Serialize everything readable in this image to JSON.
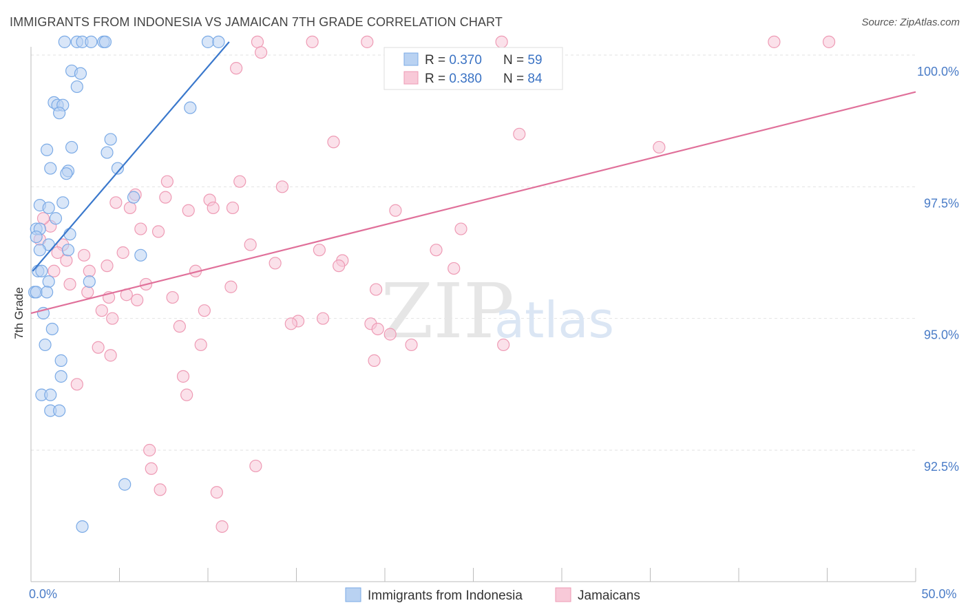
{
  "title": "IMMIGRANTS FROM INDONESIA VS JAMAICAN 7TH GRADE CORRELATION CHART",
  "source": "Source: ZipAtlas.com",
  "watermark": {
    "zip": "ZIP",
    "atlas": "atlas"
  },
  "chart_data": {
    "type": "scatter",
    "ylabel": "7th Grade",
    "xlim": [
      0,
      50
    ],
    "ylim": [
      90.0,
      100.5
    ],
    "x_tick_labels": [
      {
        "value": 0,
        "label": "0.0%"
      },
      {
        "value": 50,
        "label": "50.0%"
      }
    ],
    "y_ticks": [
      {
        "value": 92.5,
        "label": "92.5%"
      },
      {
        "value": 95.0,
        "label": "95.0%"
      },
      {
        "value": 97.5,
        "label": "97.5%"
      },
      {
        "value": 100.0,
        "label": "100.0%"
      }
    ],
    "legend": {
      "rows": [
        {
          "r_label": "R = ",
          "r_value": "0.370",
          "n_label": "N = ",
          "n_value": "59"
        },
        {
          "r_label": "R = ",
          "r_value": "0.380",
          "n_label": "N = ",
          "n_value": "84"
        }
      ]
    },
    "series": [
      {
        "name": "Immigrants from Indonesia",
        "color": "#7aaae6",
        "fill": "#b9d2f2",
        "trend": {
          "x0": 0.1,
          "y0": 95.9,
          "x1": 11.2,
          "y1": 100.25,
          "color": "#3a78cc"
        },
        "points": [
          [
            1.9,
            100.25
          ],
          [
            2.6,
            100.25
          ],
          [
            2.9,
            100.25
          ],
          [
            3.4,
            100.25
          ],
          [
            4.1,
            100.25
          ],
          [
            4.2,
            100.25
          ],
          [
            10.0,
            100.25
          ],
          [
            10.6,
            100.25
          ],
          [
            2.3,
            99.7
          ],
          [
            2.8,
            99.65
          ],
          [
            2.6,
            99.4
          ],
          [
            1.3,
            99.1
          ],
          [
            1.5,
            99.05
          ],
          [
            1.8,
            99.05
          ],
          [
            1.6,
            98.9
          ],
          [
            9.0,
            99.0
          ],
          [
            4.5,
            98.4
          ],
          [
            2.3,
            98.25
          ],
          [
            0.9,
            98.2
          ],
          [
            4.3,
            98.15
          ],
          [
            1.1,
            97.85
          ],
          [
            4.9,
            97.85
          ],
          [
            2.1,
            97.8
          ],
          [
            2.0,
            97.75
          ],
          [
            1.8,
            97.2
          ],
          [
            5.8,
            97.3
          ],
          [
            0.5,
            97.15
          ],
          [
            1.0,
            97.1
          ],
          [
            1.4,
            96.9
          ],
          [
            0.3,
            96.7
          ],
          [
            0.5,
            96.7
          ],
          [
            2.2,
            96.6
          ],
          [
            0.3,
            96.55
          ],
          [
            1.0,
            96.4
          ],
          [
            2.1,
            96.3
          ],
          [
            0.5,
            96.3
          ],
          [
            6.2,
            96.2
          ],
          [
            0.4,
            95.9
          ],
          [
            0.6,
            95.9
          ],
          [
            3.3,
            95.7
          ],
          [
            1.0,
            95.7
          ],
          [
            0.2,
            95.5
          ],
          [
            0.3,
            95.5
          ],
          [
            0.9,
            95.5
          ],
          [
            0.7,
            95.1
          ],
          [
            1.2,
            94.8
          ],
          [
            0.8,
            94.5
          ],
          [
            1.7,
            94.2
          ],
          [
            1.7,
            93.9
          ],
          [
            0.6,
            93.55
          ],
          [
            1.1,
            93.55
          ],
          [
            1.1,
            93.25
          ],
          [
            1.6,
            93.25
          ],
          [
            5.3,
            91.85
          ],
          [
            2.9,
            91.05
          ]
        ]
      },
      {
        "name": "Jamaicans",
        "color": "#ee9ab4",
        "fill": "#f8c9d8",
        "trend": {
          "x0": 0.0,
          "y0": 95.1,
          "x1": 50.0,
          "y1": 99.3,
          "color": "#e0709a"
        },
        "points": [
          [
            12.8,
            100.25
          ],
          [
            15.9,
            100.25
          ],
          [
            19.0,
            100.25
          ],
          [
            26.6,
            100.25
          ],
          [
            42.0,
            100.25
          ],
          [
            45.1,
            100.25
          ],
          [
            13.0,
            100.05
          ],
          [
            11.6,
            99.75
          ],
          [
            17.1,
            98.35
          ],
          [
            27.6,
            98.5
          ],
          [
            35.5,
            98.25
          ],
          [
            7.7,
            97.6
          ],
          [
            11.8,
            97.6
          ],
          [
            14.2,
            97.5
          ],
          [
            5.9,
            97.35
          ],
          [
            7.6,
            97.3
          ],
          [
            10.1,
            97.25
          ],
          [
            4.8,
            97.2
          ],
          [
            5.6,
            97.1
          ],
          [
            10.3,
            97.1
          ],
          [
            11.4,
            97.1
          ],
          [
            8.9,
            97.05
          ],
          [
            20.6,
            97.05
          ],
          [
            1.1,
            96.75
          ],
          [
            0.7,
            96.9
          ],
          [
            6.2,
            96.7
          ],
          [
            7.2,
            96.65
          ],
          [
            24.3,
            96.7
          ],
          [
            0.5,
            96.5
          ],
          [
            1.8,
            96.4
          ],
          [
            12.4,
            96.4
          ],
          [
            1.5,
            96.25
          ],
          [
            3.0,
            96.2
          ],
          [
            5.2,
            96.25
          ],
          [
            16.3,
            96.3
          ],
          [
            22.9,
            96.3
          ],
          [
            2.0,
            96.1
          ],
          [
            13.8,
            96.05
          ],
          [
            17.6,
            96.1
          ],
          [
            4.3,
            96.0
          ],
          [
            17.4,
            96.0
          ],
          [
            1.3,
            95.9
          ],
          [
            3.3,
            95.9
          ],
          [
            9.3,
            95.9
          ],
          [
            23.9,
            95.95
          ],
          [
            2.2,
            95.65
          ],
          [
            6.5,
            95.65
          ],
          [
            11.3,
            95.6
          ],
          [
            3.2,
            95.5
          ],
          [
            19.5,
            95.55
          ],
          [
            5.4,
            95.45
          ],
          [
            4.4,
            95.4
          ],
          [
            8.0,
            95.4
          ],
          [
            6.0,
            95.35
          ],
          [
            4.0,
            95.15
          ],
          [
            9.8,
            95.15
          ],
          [
            4.6,
            95.0
          ],
          [
            16.5,
            95.0
          ],
          [
            15.1,
            94.95
          ],
          [
            14.7,
            94.9
          ],
          [
            19.2,
            94.9
          ],
          [
            19.6,
            94.8
          ],
          [
            8.4,
            94.85
          ],
          [
            20.3,
            94.7
          ],
          [
            3.8,
            94.45
          ],
          [
            9.6,
            94.5
          ],
          [
            21.5,
            94.5
          ],
          [
            26.7,
            94.5
          ],
          [
            4.5,
            94.3
          ],
          [
            19.4,
            94.2
          ],
          [
            8.6,
            93.9
          ],
          [
            2.6,
            93.75
          ],
          [
            8.8,
            93.55
          ],
          [
            6.7,
            92.5
          ],
          [
            6.8,
            92.15
          ],
          [
            12.7,
            92.2
          ],
          [
            7.3,
            91.75
          ],
          [
            10.5,
            91.7
          ],
          [
            10.8,
            91.05
          ]
        ]
      }
    ]
  }
}
